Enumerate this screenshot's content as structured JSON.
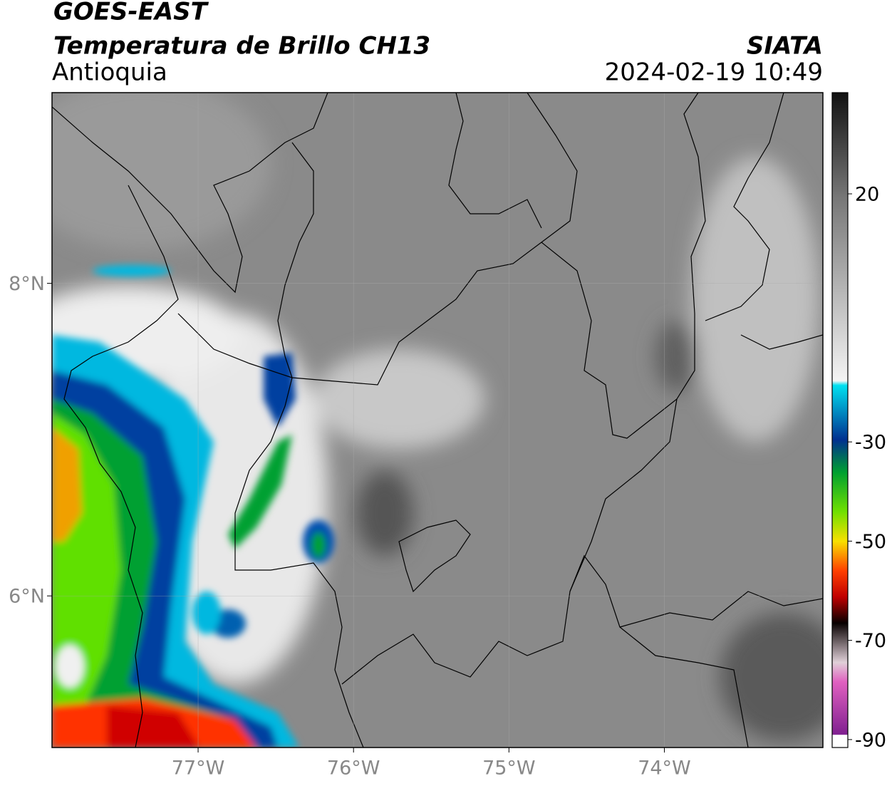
{
  "header": {
    "title": "GOES-EAST",
    "subtitle": "Temperatura de Brillo CH13",
    "region": "Antioquia",
    "source": "SIATA",
    "datetime": "2024-02-19 10:49"
  },
  "map": {
    "xlim": [
      -77.94,
      -72.98
    ],
    "ylim": [
      5.03,
      9.22
    ],
    "xticks": [
      {
        "value": -77,
        "label": "77°W"
      },
      {
        "value": -76,
        "label": "76°W"
      },
      {
        "value": -75,
        "label": "75°W"
      },
      {
        "value": -74,
        "label": "74°W"
      }
    ],
    "yticks": [
      {
        "value": 6,
        "label": "6°N"
      },
      {
        "value": 8,
        "label": "8°N"
      }
    ],
    "grid": true
  },
  "colorbar": {
    "lim": [
      -91.6,
      40.4
    ],
    "ticks": [
      20,
      -30,
      -50,
      -70,
      -90
    ]
  }
}
